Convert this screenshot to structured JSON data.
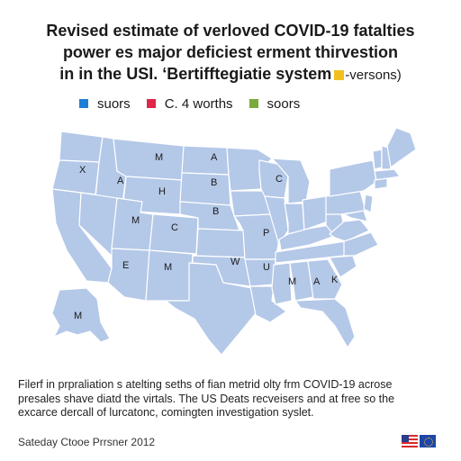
{
  "title": {
    "line1": "Revised estimate of verloved COVID-19 fatalties",
    "line2": "power es major deficiest erment thirvestion",
    "line3": "in in the USI. ‘Bertifftegiatie system",
    "line3_suffix": "-versons)"
  },
  "legend": [
    {
      "label": "suors",
      "color": "#1f7fd6"
    },
    {
      "label": "C. 4 worths",
      "color": "#e0264a"
    },
    {
      "label": "soors",
      "color": "#7aab3a"
    }
  ],
  "map": {
    "fill_color": "#b4c8e8",
    "border_color": "#ffffff",
    "labels": [
      "X",
      "A",
      "M",
      "H",
      "B",
      "C",
      "A",
      "M",
      "C",
      "B",
      "P",
      "E",
      "M",
      "W",
      "U",
      "M",
      "K",
      "A",
      "M"
    ]
  },
  "note": {
    "line1": "Filerf in prpraliation s atelting seths of fian metrid olty frm COVID-19 acrose",
    "line2": "presales shave diatd the virtals. The US Deats recveisers and at free so the",
    "line3": "excarce dercall of lurcatonc, comingten investigation syslet."
  },
  "footer": "Sateday Ctooe Prrsner 2012",
  "flags": [
    "us-flag-icon",
    "eu-flag-icon"
  ]
}
